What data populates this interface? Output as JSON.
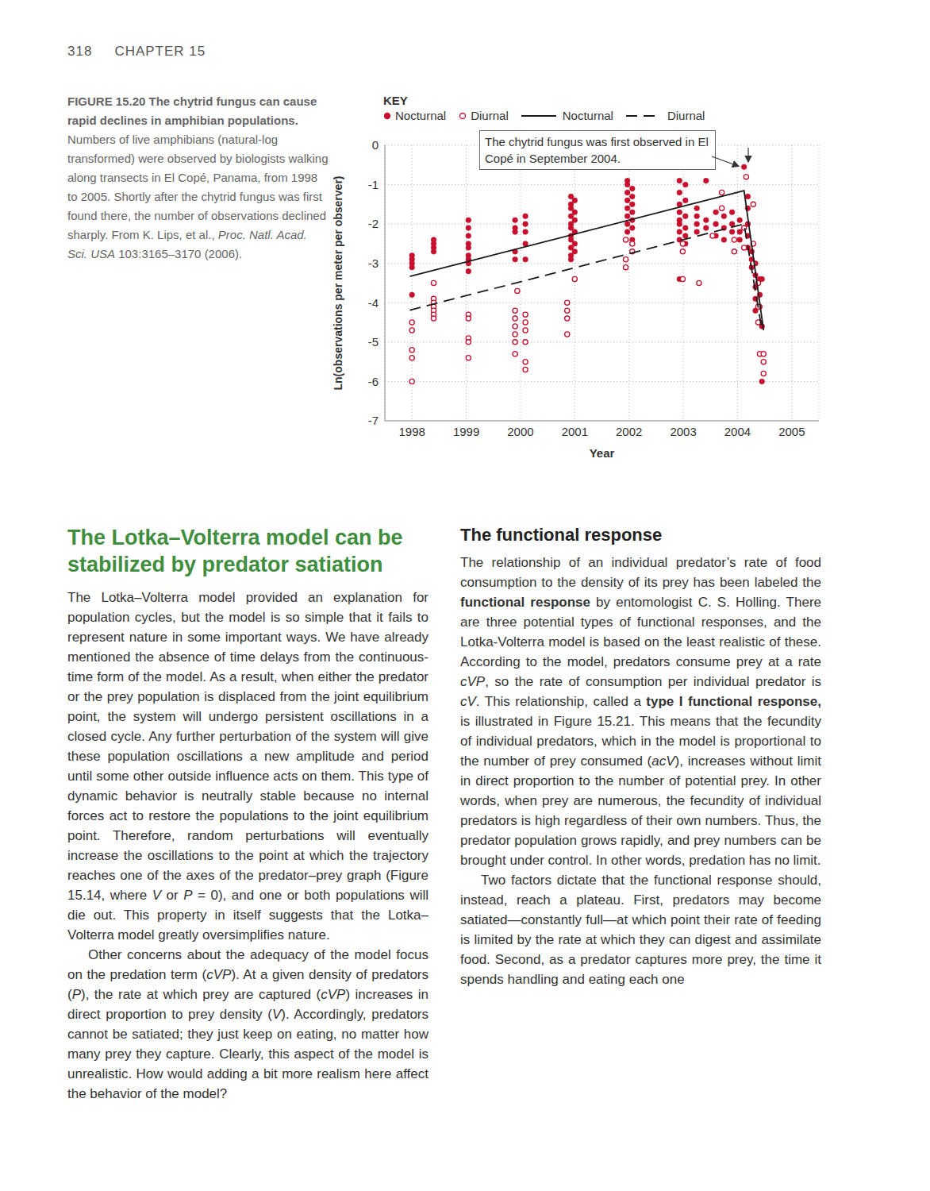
{
  "page_header": {
    "page_number": "318",
    "chapter": "CHAPTER 15"
  },
  "figure": {
    "caption": [
      {
        "text": "FIGURE 15.20 The chytrid fungus can cause rapid declines in amphibian populations.",
        "style": "bold"
      },
      {
        "text": " Numbers of live amphibians (natural-log transformed) were observed by biologists walking along transects in El Copé, Panama, from 1998 to 2005. Shortly after the chytrid fungus was first found there, the number of observations declined sharply. From K. Lips, et al., "
      },
      {
        "text": "Proc. Natl. Acad. Sci. USA",
        "style": "italic"
      },
      {
        "text": " 103:3165–3170 (2006)."
      }
    ]
  },
  "chart_data": {
    "type": "scatter",
    "x_label": "Year",
    "y_label": "Ln(observations per meter per observer)",
    "legend_title": "KEY",
    "legend": "top",
    "annotation": "The chytrid fungus was first observed in El Copé in September 2004.",
    "xlim": [
      1997.5,
      2005.5
    ],
    "xticks": [
      1998,
      1999,
      2000,
      2001,
      2002,
      2003,
      2004,
      2005
    ],
    "ylim": [
      -7,
      0
    ],
    "yticks": [
      0,
      -1,
      -2,
      -3,
      -4,
      -5,
      -6,
      -7
    ],
    "grid": true,
    "series": [
      {
        "name": "Nocturnal",
        "type": "scatter",
        "marker": "circle",
        "color": "#c8102e",
        "x": [
          1998.0,
          1998.0,
          1998.0,
          1998.0,
          1998.0,
          1998.4,
          1998.4,
          1998.4,
          1998.4,
          1999.04,
          1999.04,
          1999.04,
          1999.04,
          1999.04,
          1999.04,
          1999.04,
          1999.04,
          1999.04,
          1999.9,
          1999.9,
          1999.9,
          1999.9,
          1999.9,
          2000.09,
          2000.09,
          2000.09,
          2000.09,
          2000.09,
          2000.93,
          2000.93,
          2000.93,
          2000.93,
          2000.93,
          2000.93,
          2000.93,
          2000.93,
          2000.93,
          2000.93,
          2000.93,
          2001.0,
          2001.0,
          2001.0,
          2001.0,
          2001.0,
          2001.0,
          2001.97,
          2001.97,
          2001.97,
          2001.97,
          2001.97,
          2001.97,
          2001.97,
          2001.97,
          2002.06,
          2002.06,
          2002.06,
          2002.06,
          2002.06,
          2002.06,
          2002.06,
          2002.93,
          2002.93,
          2002.93,
          2002.93,
          2002.93,
          2002.93,
          2002.93,
          2002.93,
          2002.93,
          2003.04,
          2003.04,
          2003.04,
          2003.04,
          2003.04,
          2003.04,
          2003.25,
          2003.25,
          2003.25,
          2003.25,
          2003.42,
          2003.42,
          2003.42,
          2003.6,
          2003.6,
          2003.6,
          2003.75,
          2003.75,
          2003.75,
          2003.9,
          2003.9,
          2003.9,
          2004.04,
          2004.04,
          2004.04,
          2004.12,
          2004.19,
          2004.19,
          2004.19,
          2004.19,
          2004.19,
          2004.26,
          2004.26,
          2004.26,
          2004.33,
          2004.33,
          2004.33,
          2004.33,
          2004.33,
          2004.41,
          2004.41,
          2004.41,
          2004.41,
          2004.45,
          2004.45,
          2004.45
        ],
        "values": [
          -2.8,
          -2.9,
          -3.0,
          -3.1,
          -3.8,
          -2.4,
          -2.5,
          -2.6,
          -2.7,
          -1.9,
          -2.1,
          -2.3,
          -2.5,
          -2.6,
          -2.8,
          -2.9,
          -3.0,
          -3.2,
          -1.9,
          -2.1,
          -2.2,
          -2.7,
          -2.9,
          -1.8,
          -2.0,
          -2.2,
          -2.5,
          -2.9,
          -1.3,
          -1.5,
          -1.6,
          -1.8,
          -2.0,
          -2.1,
          -2.3,
          -2.4,
          -2.6,
          -2.8,
          -2.9,
          -1.4,
          -1.7,
          -1.9,
          -2.2,
          -2.5,
          -2.7,
          -0.9,
          -1.0,
          -1.2,
          -1.4,
          -1.6,
          -1.8,
          -2.0,
          -2.2,
          -1.1,
          -1.3,
          -1.5,
          -1.7,
          -1.9,
          -2.1,
          -2.4,
          -0.9,
          -1.2,
          -1.5,
          -1.7,
          -1.9,
          -2.0,
          -2.2,
          -2.4,
          -3.4,
          -1.0,
          -1.4,
          -1.8,
          -2.1,
          -2.3,
          -2.5,
          -1.6,
          -1.8,
          -2.0,
          -2.2,
          -0.9,
          -1.9,
          -2.1,
          -1.7,
          -2.0,
          -2.3,
          -1.8,
          -2.1,
          -2.4,
          -1.7,
          -2.0,
          -2.2,
          -1.9,
          -2.2,
          -2.4,
          -0.55,
          -1.3,
          -1.6,
          -2.0,
          -2.3,
          -2.6,
          -2.7,
          -2.9,
          -3.1,
          -3.0,
          -3.3,
          -3.6,
          -3.9,
          -4.2,
          -3.4,
          -3.8,
          -4.1,
          -4.5,
          -3.4,
          -4.6,
          -6.0
        ]
      },
      {
        "name": "Diurnal",
        "type": "scatter",
        "marker": "open_circle",
        "color": "#c8102e",
        "x": [
          1998.0,
          1998.0,
          1998.0,
          1998.0,
          1998.0,
          1998.4,
          1998.4,
          1998.4,
          1998.4,
          1998.4,
          1998.4,
          1998.4,
          1999.04,
          1999.04,
          1999.04,
          1999.04,
          1999.04,
          1999.9,
          1999.9,
          1999.9,
          1999.9,
          1999.9,
          1999.9,
          2000.09,
          2000.09,
          2000.09,
          2000.09,
          2000.09,
          2000.09,
          2000.86,
          2000.86,
          2000.86,
          2000.86,
          2001.0,
          1999.94,
          2001.94,
          2001.94,
          2001.94,
          2002.06,
          2002.06,
          2002.99,
          2002.99,
          2002.99,
          2003.29,
          2003.54,
          2003.71,
          2003.71,
          2003.94,
          2003.94,
          2004.12,
          2004.12,
          2004.16,
          2004.29,
          2004.29,
          2004.29,
          2004.38,
          2004.38,
          2004.38,
          2004.41,
          2004.48,
          2004.48,
          2004.48
        ],
        "values": [
          -4.5,
          -4.7,
          -5.2,
          -5.4,
          -6.0,
          -3.5,
          -3.9,
          -4.0,
          -4.1,
          -4.2,
          -4.3,
          -4.4,
          -4.3,
          -4.4,
          -4.9,
          -5.0,
          -5.4,
          -4.2,
          -4.4,
          -4.6,
          -4.8,
          -5.0,
          -5.3,
          -4.3,
          -4.5,
          -4.7,
          -5.0,
          -5.5,
          -5.7,
          -4.0,
          -4.2,
          -4.4,
          -4.8,
          -3.4,
          -3.7,
          -2.4,
          -2.9,
          -3.1,
          -2.5,
          -2.7,
          -3.4,
          -2.5,
          -2.7,
          -3.5,
          -2.3,
          -1.2,
          -1.6,
          -2.4,
          -2.7,
          -2.1,
          -2.6,
          -0.8,
          -1.5,
          -2.5,
          -3.0,
          -3.5,
          -4.1,
          -4.5,
          -5.3,
          -5.3,
          -5.5,
          -5.8
        ]
      },
      {
        "name": "Nocturnal",
        "type": "line",
        "line_style": "solid",
        "color": "#1a1a1a",
        "x": [
          1997.96,
          2004.12,
          2004.48
        ],
        "values": [
          -3.33,
          -1.15,
          -4.7
        ]
      },
      {
        "name": "Diurnal",
        "type": "line",
        "line_style": "dashed",
        "color": "#1a1a1a",
        "x": [
          1997.96,
          2004.12,
          2004.44
        ],
        "values": [
          -4.19,
          -2.0,
          -4.6
        ]
      }
    ]
  },
  "body": [
    {
      "heading": "The Lotka–Volterra model can be stabilized by predator satiation"
    },
    {
      "paragraph": [
        {
          "text": "The Lotka–Volterra model provided an explanation for population cycles, but the model is so simple that it fails to represent nature in some important ways. We have already mentioned the absence of time delays from the continuous-time form of the model. As a result, when either the predator or the prey population is displaced from the joint equilibrium point, the system will undergo persistent oscillations in a closed cycle. Any further perturbation of the system will give these population oscillations a new amplitude and period until some other outside influence acts on them. This type of dynamic behavior is neutrally stable because no internal forces act to restore the populations to the joint equilibrium point. Therefore, random perturbations will eventually increase the oscillations to the point at which the trajectory reaches one of the axes of the predator–prey graph (Figure 15.14, where "
        },
        {
          "text": "V",
          "style": "italic"
        },
        {
          "text": " or "
        },
        {
          "text": "P",
          "style": "italic"
        },
        {
          "text": " = 0), and one or both populations will die out. This property in itself suggests that the Lotka–Volterra model greatly oversimplifies nature."
        }
      ]
    },
    {
      "paragraph": [
        {
          "text": "Other concerns about the adequacy of the model focus on the predation term ("
        },
        {
          "text": "cVP",
          "style": "italic"
        },
        {
          "text": "). At a given density of predators ("
        },
        {
          "text": "P",
          "style": "italic"
        },
        {
          "text": "), the rate at which prey are captured ("
        },
        {
          "text": "cVP",
          "style": "italic"
        },
        {
          "text": ") increases in direct proportion to prey density ("
        },
        {
          "text": "V",
          "style": "italic"
        },
        {
          "text": "). Accordingly, predators cannot be satiated; they just keep on eating, no matter how many prey they capture. Clearly, this aspect of the model is unrealistic. How would adding a bit more realism here affect the behavior of the model?"
        }
      ]
    },
    {
      "subheading": "The functional response"
    },
    {
      "paragraph": [
        {
          "text": "The relationship of an individual predator’s rate of food consumption to the density of its prey has been labeled the "
        },
        {
          "text": "functional response",
          "style": "bold"
        },
        {
          "text": " by entomologist C. S. Holling. There are three potential types of functional responses, and the Lotka-Volterra model is based on the least realistic of these. According to the model, predators consume prey at a rate "
        },
        {
          "text": "cVP",
          "style": "italic"
        },
        {
          "text": ", so the rate of consumption per individual predator is "
        },
        {
          "text": "cV",
          "style": "italic"
        },
        {
          "text": ". This relationship, called a "
        },
        {
          "text": "type I functional response,",
          "style": "bold"
        },
        {
          "text": " is illustrated in Figure 15.21. This means that the fecundity of individual predators, which in the model is proportional to the number of prey consumed ("
        },
        {
          "text": "acV",
          "style": "italic"
        },
        {
          "text": "), increases without limit in direct proportion to the number of potential prey. In other words, when prey are numerous, the fecundity of individual predators is high regardless of their own numbers. Thus, the predator population grows rapidly, and prey numbers can be brought under control. In other words, predation has no limit."
        }
      ]
    },
    {
      "paragraph": [
        {
          "text": "Two factors dictate that the functional response should, instead, reach a plateau. First, predators may become satiated—constantly full—at which point their rate of feeding is limited by the rate at which they can digest and assimilate food. Second, as a predator captures more prey, the time it spends handling and eating each one"
        }
      ]
    }
  ]
}
